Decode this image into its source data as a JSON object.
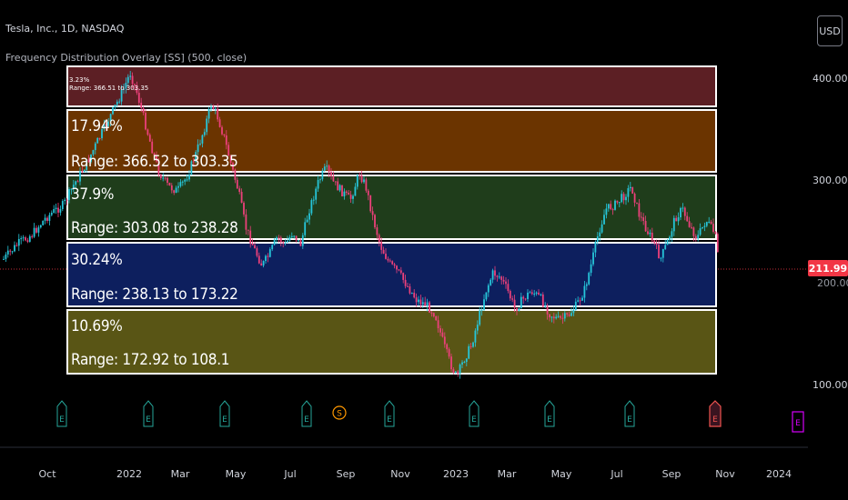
{
  "header": {
    "title": "Tesla, Inc., 1D, NASDAQ",
    "indicator": "Frequency Distribution Overlay [SS] (500, close)"
  },
  "currency_button": "USD",
  "price_axis": {
    "ticks": [
      "400.00",
      "300.00",
      "100.00"
    ],
    "last_price": "211.99",
    "last_price_under": "200.00"
  },
  "time_axis": [
    "Oct",
    "2022",
    "Mar",
    "May",
    "Jul",
    "Sep",
    "Nov",
    "2023",
    "Mar",
    "May",
    "Jul",
    "Sep",
    "Nov",
    "2024"
  ],
  "bands": [
    {
      "small_pct": "3.23%",
      "small_range": "Range: 366.51 to 303.35"
    },
    {
      "pct": "17.94%",
      "range": "Range: 366.52 to 303.35"
    },
    {
      "pct": "37.9%",
      "range": "Range: 303.08 to 238.28"
    },
    {
      "pct": "30.24%",
      "range": "Range: 238.13 to 173.22"
    },
    {
      "pct": "10.69%",
      "range": "Range: 172.92 to 108.1"
    }
  ],
  "events": [
    {
      "label": "E",
      "kind": "earnings"
    },
    {
      "label": "E",
      "kind": "earnings"
    },
    {
      "label": "E",
      "kind": "earnings"
    },
    {
      "label": "E",
      "kind": "earnings"
    },
    {
      "label": "S",
      "kind": "split"
    },
    {
      "label": "E",
      "kind": "earnings"
    },
    {
      "label": "E",
      "kind": "earnings"
    },
    {
      "label": "E",
      "kind": "earnings"
    },
    {
      "label": "E",
      "kind": "earnings"
    },
    {
      "label": "E",
      "kind": "earnings-latest"
    },
    {
      "label": "E",
      "kind": "earnings-upcoming"
    }
  ],
  "colors": {
    "background": "#000000",
    "up_candle": "#26c6da",
    "down_candle": "#ec407a",
    "band_red": "#5c1f24",
    "band_orange": "#6b3400",
    "band_green": "#1f3d1b",
    "band_blue": "#0d1f5e",
    "band_olive": "#595515",
    "price_badge": "#f23645"
  }
}
